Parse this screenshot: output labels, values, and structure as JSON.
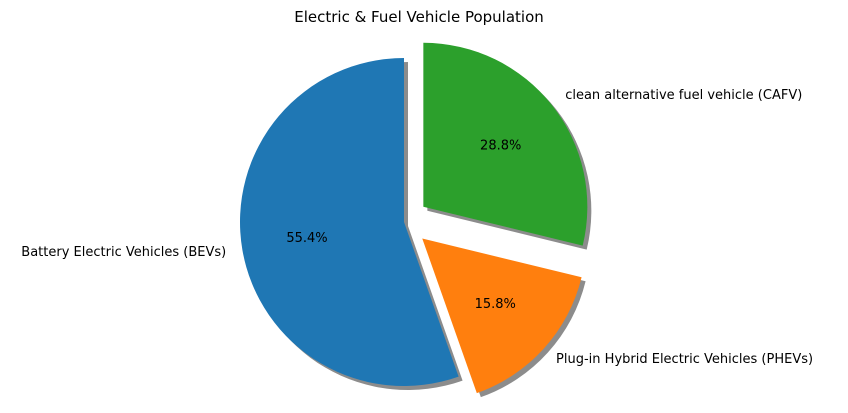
{
  "chart_data": {
    "type": "pie",
    "title": "Electric & Fuel Vehicle Population",
    "slices": [
      {
        "label": "Battery Electric Vehicles (BEVs)",
        "value": 55.4,
        "pct_label": "55.4%",
        "color": "#1f77b4",
        "exploded": false
      },
      {
        "label": "Plug-in Hybrid Electric Vehicles (PHEVs)",
        "value": 15.8,
        "pct_label": "15.8%",
        "color": "#ff7f0e",
        "exploded": true
      },
      {
        "label": "clean alternative fuel vehicle (CAFV)",
        "value": 28.8,
        "pct_label": "28.8%",
        "color": "#2ca02c",
        "exploded": true
      }
    ],
    "start_angle": 90,
    "direction": "counterclockwise",
    "shadow": true,
    "legend": "none"
  }
}
